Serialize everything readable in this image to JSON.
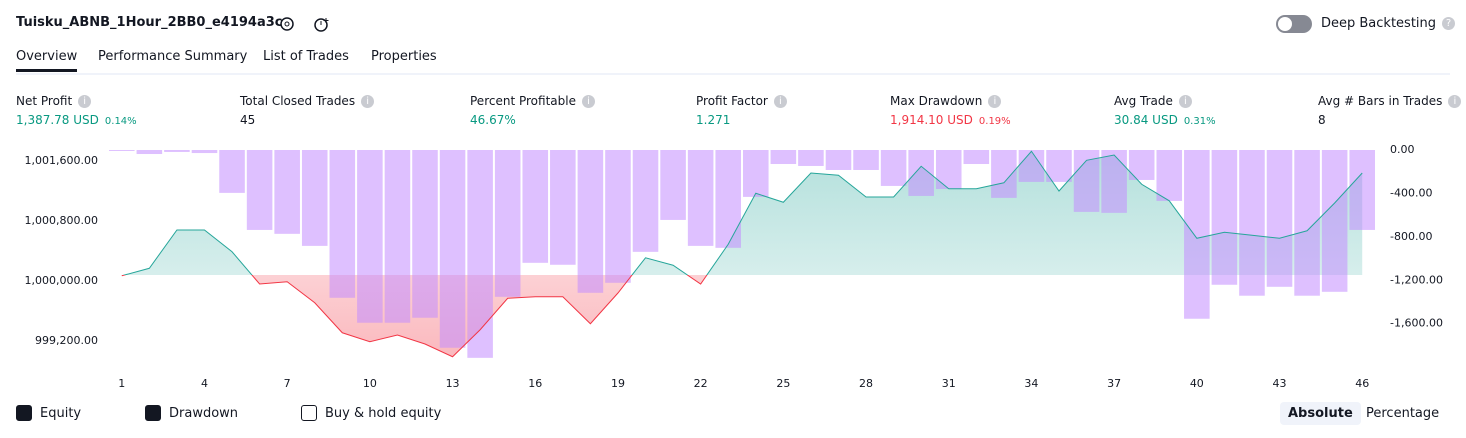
{
  "header": {
    "title": "Tuisku_ABNB_1Hour_2BB0_e4194a3c",
    "deep_backtesting": "Deep Backtesting"
  },
  "tabs": [
    "Overview",
    "Performance Summary",
    "List of Trades",
    "Properties"
  ],
  "metrics": [
    {
      "label": "Net Profit",
      "value": "1,387.78 USD",
      "percent": "0.14%",
      "tone": "pos"
    },
    {
      "label": "Total Closed Trades",
      "value": "45",
      "tone": "neutral"
    },
    {
      "label": "Percent Profitable",
      "value": "46.67%",
      "tone": "pos"
    },
    {
      "label": "Profit Factor",
      "value": "1.271",
      "tone": "pos"
    },
    {
      "label": "Max Drawdown",
      "value": "1,914.10 USD",
      "percent": "0.19%",
      "tone": "neg"
    },
    {
      "label": "Avg Trade",
      "value": "30.84 USD",
      "percent": "0.31%",
      "tone": "pos"
    },
    {
      "label": "Avg # Bars in Trades",
      "value": "8",
      "tone": "neutral"
    }
  ],
  "chart_data": {
    "type": "combo",
    "x": [
      1,
      2,
      3,
      4,
      5,
      6,
      7,
      8,
      9,
      10,
      11,
      12,
      13,
      14,
      15,
      16,
      17,
      18,
      19,
      20,
      21,
      22,
      23,
      24,
      25,
      26,
      27,
      28,
      29,
      30,
      31,
      32,
      33,
      34,
      35,
      36,
      37,
      38,
      39,
      40,
      41,
      42,
      43,
      44,
      45,
      46
    ],
    "xlim": [
      0.5,
      46.5
    ],
    "xticks": [
      1,
      4,
      7,
      10,
      13,
      16,
      19,
      22,
      25,
      28,
      31,
      34,
      37,
      40,
      43,
      46
    ],
    "ylim": [
      998800,
      1001667
    ],
    "yticks": [
      {
        "value": 999200,
        "label": "999,200.00"
      },
      {
        "value": 1000000,
        "label": "1,000,000.00"
      },
      {
        "value": 1000800,
        "label": "1,000,800.00"
      },
      {
        "value": 1001600,
        "label": "1,001,600.00"
      }
    ],
    "y2lim": [
      -1980,
      0
    ],
    "y2ticks": [
      {
        "value": -1600,
        "label": "-1,600.00"
      },
      {
        "value": -1200,
        "label": "-1,200.00"
      },
      {
        "value": -800,
        "label": "-800.00"
      },
      {
        "value": -400,
        "label": "-400.00"
      },
      {
        "value": 0,
        "label": "0.00"
      }
    ],
    "baseline": 1000000,
    "series": [
      {
        "name": "Equity",
        "type": "line",
        "color": "#26a69a",
        "negative_color": "#f23645",
        "values": [
          999990,
          1000090,
          1000600,
          1000600,
          1000310,
          999880,
          999910,
          999630,
          999230,
          999110,
          999200,
          999080,
          998910,
          999270,
          999690,
          999710,
          999710,
          999350,
          999760,
          1000230,
          1000130,
          999880,
          1000410,
          1001090,
          1000970,
          1001360,
          1001330,
          1001040,
          1001040,
          1001450,
          1001150,
          1001150,
          1001230,
          1001650,
          1001120,
          1001530,
          1001600,
          1001210,
          1000990,
          1000490,
          1000570,
          1000530,
          1000490,
          1000590,
          1000960,
          1001360
        ]
      },
      {
        "name": "Drawdown",
        "type": "bar",
        "axis": "y2",
        "color": "#c38cff",
        "values": [
          -9,
          -37,
          -18,
          -28,
          -395,
          -736,
          -772,
          -883,
          -1361,
          -1591,
          -1591,
          -1545,
          -1821,
          -1914,
          -1352,
          -1039,
          -1057,
          -1315,
          -1223,
          -938,
          -644,
          -883,
          -901,
          -432,
          -129,
          -147,
          -184,
          -184,
          -331,
          -423,
          -359,
          -129,
          -441,
          -294,
          -294,
          -570,
          -579,
          -276,
          -469,
          -1554,
          -1241,
          -1342,
          -1260,
          -1342,
          -1306,
          -736
        ]
      }
    ]
  },
  "legend_extra": [
    "Buy & hold equity"
  ],
  "view_modes": [
    "Absolute",
    "Percentage"
  ]
}
